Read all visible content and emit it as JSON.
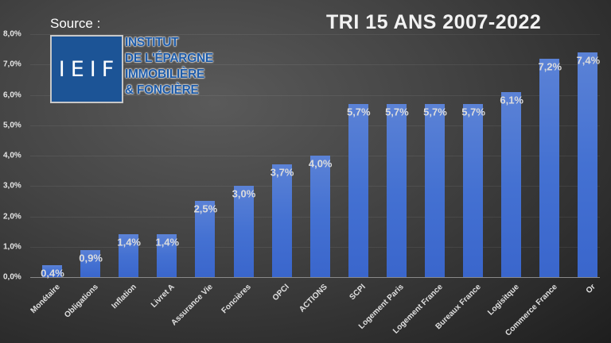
{
  "header": {
    "title": "TRI 15 ANS 2007-2022",
    "source_label": "Source :"
  },
  "logo": {
    "acronym": "IEIF",
    "lines": [
      "INSTITUT",
      "DE L'ÉPARGNE",
      "IMMOBILIÈRE",
      "& FONCIÈRE"
    ]
  },
  "colors": {
    "bar": "#4471d2",
    "background": "#3a3a3a",
    "logo_blue": "#1c5496"
  },
  "y_ticks": [
    "0,0%",
    "1,0%",
    "2,0%",
    "3,0%",
    "4,0%",
    "5,0%",
    "6,0%",
    "7,0%",
    "8,0%"
  ],
  "chart_data": {
    "type": "bar",
    "title": "TRI 15 ANS 2007-2022",
    "xlabel": "",
    "ylabel": "",
    "ylim": [
      0,
      8
    ],
    "grid": true,
    "legend": null,
    "categories": [
      "Monétaire",
      "Obligations",
      "Inflation",
      "Livret A",
      "Assurance Vie",
      "Foncières",
      "OPCI",
      "ACTIONS",
      "SCPI",
      "Logement Paris",
      "Logement France",
      "Bureaux France",
      "Logisitque",
      "Commerce France",
      "Or"
    ],
    "values": [
      0.4,
      0.9,
      1.4,
      1.4,
      2.5,
      3.0,
      3.7,
      4.0,
      5.7,
      5.7,
      5.7,
      5.7,
      6.1,
      7.2,
      7.4
    ],
    "value_labels": [
      "0,4%",
      "0,9%",
      "1,4%",
      "1,4%",
      "2,5%",
      "3,0%",
      "3,7%",
      "4,0%",
      "5,7%",
      "5,7%",
      "5,7%",
      "5,7%",
      "6,1%",
      "7,2%",
      "7,4%"
    ],
    "y_tick_labels": [
      "0,0%",
      "1,0%",
      "2,0%",
      "3,0%",
      "4,0%",
      "5,0%",
      "6,0%",
      "7,0%",
      "8,0%"
    ],
    "source": "IEIF - Institut de l'Épargne Immobilière & Foncière"
  }
}
